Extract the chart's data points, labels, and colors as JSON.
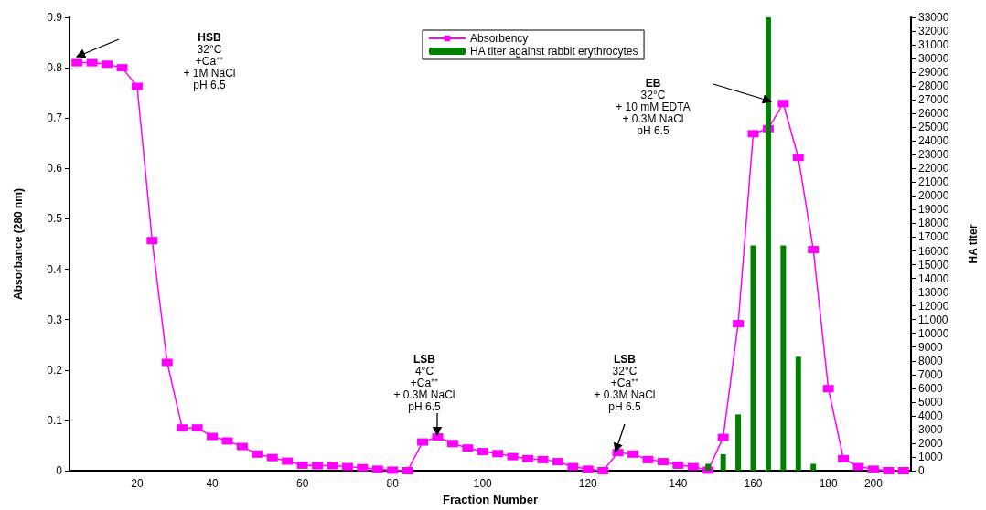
{
  "chart_data": {
    "type": "line",
    "xlabel": "Fraction Number",
    "ylabel": "Absorbance (280 nm)",
    "y2label": "HA titer",
    "categories": [
      null,
      null,
      null,
      null,
      "20",
      null,
      null,
      null,
      null,
      "40",
      null,
      null,
      null,
      null,
      null,
      "60",
      null,
      null,
      null,
      null,
      null,
      "80",
      null,
      null,
      null,
      null,
      null,
      "100",
      null,
      null,
      null,
      null,
      null,
      null,
      "120",
      null,
      null,
      null,
      null,
      null,
      "140",
      null,
      null,
      null,
      null,
      "160",
      null,
      null,
      null,
      null,
      "180",
      null,
      null,
      "200",
      null,
      null
    ],
    "series": [
      {
        "name": "Absorbency",
        "color": "#ff00ff",
        "marker": "square",
        "values": [
          0.81,
          0.81,
          0.807,
          0.8,
          0.763,
          0.457,
          0.215,
          0.085,
          0.085,
          0.068,
          0.059,
          0.048,
          0.033,
          0.026,
          0.019,
          0.011,
          0.01,
          0.01,
          0.008,
          0.006,
          0.003,
          0.001,
          0,
          0.057,
          0.067,
          0.054,
          0.045,
          0.038,
          0.034,
          0.028,
          0.024,
          0.022,
          0.018,
          0.008,
          0.003,
          0,
          0.036,
          0.033,
          0.022,
          0.018,
          0.011,
          0.008,
          0.001,
          0.066,
          0.292,
          0.669,
          0.679,
          0.729,
          0.622,
          0.439,
          0.163,
          0.024,
          0.008,
          0.003,
          0,
          0
        ]
      },
      {
        "name": "HA titer against rabbit erythrocytes",
        "type": "bar",
        "axis": "y2",
        "color": "#008000",
        "values": [
          null,
          null,
          null,
          null,
          null,
          null,
          null,
          null,
          null,
          null,
          null,
          null,
          null,
          null,
          null,
          null,
          null,
          null,
          null,
          null,
          null,
          null,
          null,
          null,
          null,
          null,
          null,
          null,
          null,
          null,
          null,
          null,
          null,
          null,
          null,
          null,
          null,
          null,
          null,
          null,
          null,
          null,
          500,
          1200,
          4100,
          16400,
          33000,
          16400,
          8300,
          500,
          null,
          null,
          null,
          null,
          null,
          null
        ]
      }
    ],
    "ylim": [
      0,
      0.9
    ],
    "yticks": [
      0,
      0.1,
      0.2,
      0.3,
      0.4,
      0.5,
      0.6,
      0.7,
      0.8,
      0.9
    ],
    "y2lim": [
      0,
      33000
    ],
    "y2ticks": [
      0,
      1000,
      2000,
      3000,
      4000,
      5000,
      6000,
      7000,
      8000,
      9000,
      10000,
      11000,
      12000,
      13000,
      14000,
      15000,
      16000,
      17000,
      18000,
      19000,
      20000,
      21000,
      22000,
      23000,
      24000,
      25000,
      26000,
      27000,
      28000,
      29000,
      30000,
      31000,
      32000,
      33000
    ],
    "grid": false,
    "legend": "top",
    "annotations": [
      "HSB\n32°C\n+Ca⁺⁺\n+ 1M NaCl\npH 6.5",
      "LSB\n4°C\n+Ca⁺⁺\n+ 0.3M NaCl\npH 6.5",
      "LSB\n32°C\n+Ca⁺⁺\n+ 0.3M NaCl\npH 6.5",
      "EB\n32°C\n+ 10 mM EDTA\n+ 0.3M NaCl\npH 6.5"
    ]
  }
}
